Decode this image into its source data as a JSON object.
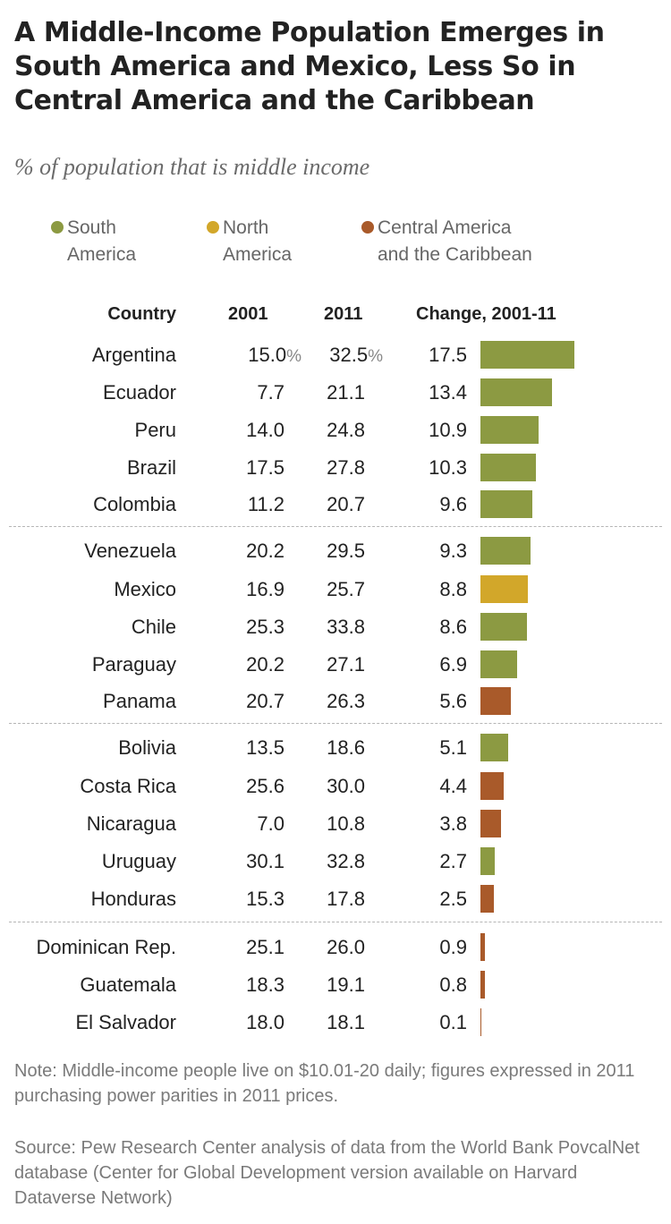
{
  "title": "A Middle-Income Population Emerges in South America and Mexico, Less So in Central America and the Caribbean",
  "subtitle": "% of population that is middle income",
  "legend": [
    {
      "label": "South America",
      "color": "#8c9a42"
    },
    {
      "label": "North America",
      "color": "#d2a72a"
    },
    {
      "label": "Central America and the Caribbean",
      "color": "#a95a2a"
    }
  ],
  "columns": {
    "country": "Country",
    "y2001": "2001",
    "y2011": "2011",
    "change": "Change, 2001-11"
  },
  "chart_data": {
    "type": "bar",
    "title": "A Middle-Income Population Emerges in South America and Mexico, Less So in Central America and the Caribbean",
    "subtitle": "% of population that is middle income",
    "xlabel": "",
    "ylabel": "",
    "categories": [
      "Argentina",
      "Ecuador",
      "Peru",
      "Brazil",
      "Colombia",
      "Venezuela",
      "Mexico",
      "Chile",
      "Paraguay",
      "Panama",
      "Bolivia",
      "Costa Rica",
      "Nicaragua",
      "Uruguay",
      "Honduras",
      "Dominican Rep.",
      "Guatemala",
      "El Salvador"
    ],
    "rows": [
      {
        "country": "Argentina",
        "y2001": "15.0",
        "y2011": "32.5",
        "change": 17.5,
        "change_label": "17.5",
        "region": 0,
        "pct": true
      },
      {
        "country": "Ecuador",
        "y2001": "7.7",
        "y2011": "21.1",
        "change": 13.4,
        "change_label": "13.4",
        "region": 0
      },
      {
        "country": "Peru",
        "y2001": "14.0",
        "y2011": "24.8",
        "change": 10.9,
        "change_label": "10.9",
        "region": 0
      },
      {
        "country": "Brazil",
        "y2001": "17.5",
        "y2011": "27.8",
        "change": 10.3,
        "change_label": "10.3",
        "region": 0
      },
      {
        "country": "Colombia",
        "y2001": "11.2",
        "y2011": "20.7",
        "change": 9.6,
        "change_label": "9.6",
        "region": 0
      },
      {
        "country": "Venezuela",
        "y2001": "20.2",
        "y2011": "29.5",
        "change": 9.3,
        "change_label": "9.3",
        "region": 0
      },
      {
        "country": "Mexico",
        "y2001": "16.9",
        "y2011": "25.7",
        "change": 8.8,
        "change_label": "8.8",
        "region": 1
      },
      {
        "country": "Chile",
        "y2001": "25.3",
        "y2011": "33.8",
        "change": 8.6,
        "change_label": "8.6",
        "region": 0
      },
      {
        "country": "Paraguay",
        "y2001": "20.2",
        "y2011": "27.1",
        "change": 6.9,
        "change_label": "6.9",
        "region": 0
      },
      {
        "country": "Panama",
        "y2001": "20.7",
        "y2011": "26.3",
        "change": 5.6,
        "change_label": "5.6",
        "region": 2
      },
      {
        "country": "Bolivia",
        "y2001": "13.5",
        "y2011": "18.6",
        "change": 5.1,
        "change_label": "5.1",
        "region": 0
      },
      {
        "country": "Costa Rica",
        "y2001": "25.6",
        "y2011": "30.0",
        "change": 4.4,
        "change_label": "4.4",
        "region": 2
      },
      {
        "country": "Nicaragua",
        "y2001": "7.0",
        "y2011": "10.8",
        "change": 3.8,
        "change_label": "3.8",
        "region": 2
      },
      {
        "country": "Uruguay",
        "y2001": "30.1",
        "y2011": "32.8",
        "change": 2.7,
        "change_label": "2.7",
        "region": 0
      },
      {
        "country": "Honduras",
        "y2001": "15.3",
        "y2011": "17.8",
        "change": 2.5,
        "change_label": "2.5",
        "region": 2
      },
      {
        "country": "Dominican Rep.",
        "y2001": "25.1",
        "y2011": "26.0",
        "change": 0.9,
        "change_label": "0.9",
        "region": 2
      },
      {
        "country": "Guatemala",
        "y2001": "18.3",
        "y2011": "19.1",
        "change": 0.8,
        "change_label": "0.8",
        "region": 2
      },
      {
        "country": "El Salvador",
        "y2001": "18.0",
        "y2011": "18.1",
        "change": 0.1,
        "change_label": "0.1",
        "region": 2
      }
    ],
    "pct_symbol": "%",
    "grid": false
  },
  "note": "Note: Middle-income people live on $10.01-20 daily; figures expressed in 2011 purchasing power parities in 2011 prices.",
  "source": "Source: Pew Research Center analysis of data from the World Bank PovcalNet database (Center for Global Development version available on Harvard Dataverse Network)"
}
